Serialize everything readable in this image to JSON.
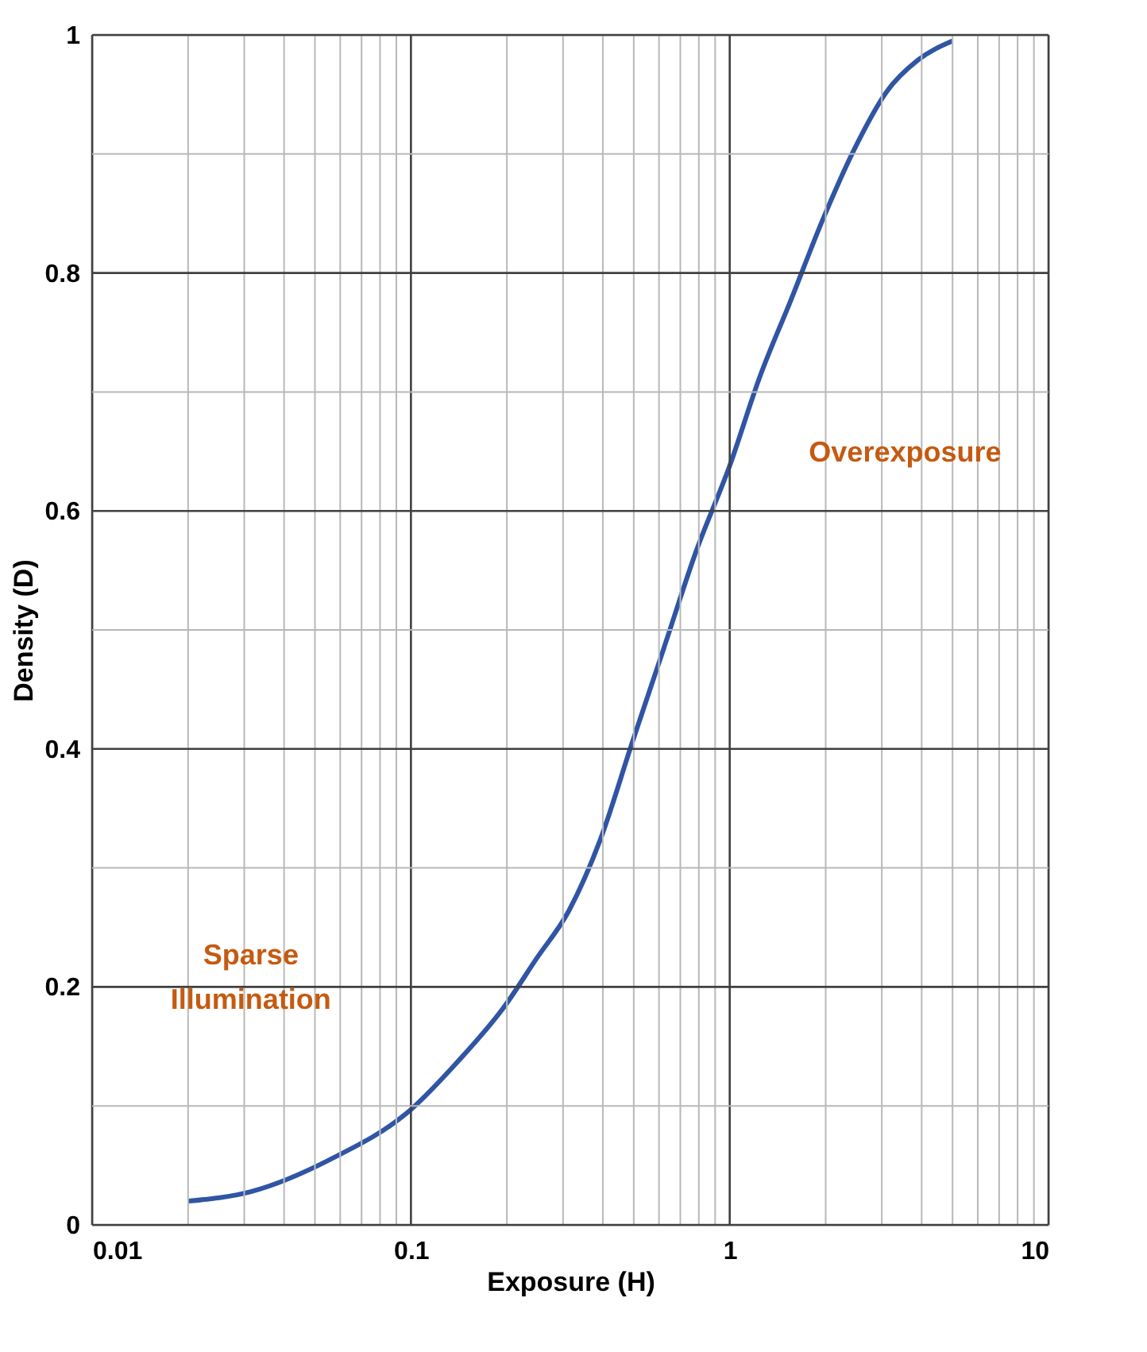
{
  "chart_data": {
    "type": "line",
    "xlabel": "Exposure (H)",
    "ylabel": "Density (D)",
    "x": [
      0.02,
      0.0315,
      0.0558,
      0.1,
      0.14,
      0.197,
      0.248,
      0.313,
      0.393,
      0.494,
      0.622,
      0.782,
      1.0,
      1.24,
      1.56,
      1.96,
      2.47,
      3.1,
      3.9,
      5.0
    ],
    "series": [
      {
        "color": "#2f55a4",
        "values": [
          0.02,
          0.028,
          0.055,
          0.097,
          0.137,
          0.184,
          0.224,
          0.264,
          0.324,
          0.405,
          0.485,
          0.565,
          0.638,
          0.712,
          0.778,
          0.845,
          0.905,
          0.952,
          0.979,
          0.995
        ]
      }
    ],
    "xlim": [
      0.01,
      10
    ],
    "ylim": [
      0,
      1
    ],
    "log": "x",
    "grid": true,
    "xticks": [
      0.01,
      {
        "value": 0.02,
        "label": null
      },
      {
        "value": 0.03,
        "label": null
      },
      {
        "value": 0.04,
        "label": null
      },
      {
        "value": 0.05,
        "label": null
      },
      {
        "value": 0.06,
        "label": null
      },
      {
        "value": 0.07,
        "label": null
      },
      {
        "value": 0.08,
        "label": null
      },
      {
        "value": 0.09,
        "label": null
      },
      0.1,
      {
        "value": 0.2,
        "label": null
      },
      {
        "value": 0.3,
        "label": null
      },
      {
        "value": 0.4,
        "label": null
      },
      {
        "value": 0.5,
        "label": null
      },
      {
        "value": 0.6,
        "label": null
      },
      {
        "value": 0.7,
        "label": null
      },
      {
        "value": 0.8,
        "label": null
      },
      {
        "value": 0.9,
        "label": null
      },
      1,
      {
        "value": 2,
        "label": null
      },
      {
        "value": 3,
        "label": null
      },
      {
        "value": 4,
        "label": null
      },
      {
        "value": 5,
        "label": null
      },
      {
        "value": 6,
        "label": null
      },
      {
        "value": 7,
        "label": null
      },
      {
        "value": 8,
        "label": null
      },
      {
        "value": 9,
        "label": null
      },
      10
    ],
    "yticks": [
      0,
      {
        "value": 0.1,
        "label": null
      },
      0.2,
      {
        "value": 0.3,
        "label": null
      },
      0.4,
      {
        "value": 0.5,
        "label": null
      },
      0.6,
      {
        "value": 0.7,
        "label": null
      },
      0.8,
      {
        "value": 0.9,
        "label": null
      },
      1
    ],
    "annotations": [
      "Overexposure",
      "Sparse\nIllumination"
    ]
  }
}
